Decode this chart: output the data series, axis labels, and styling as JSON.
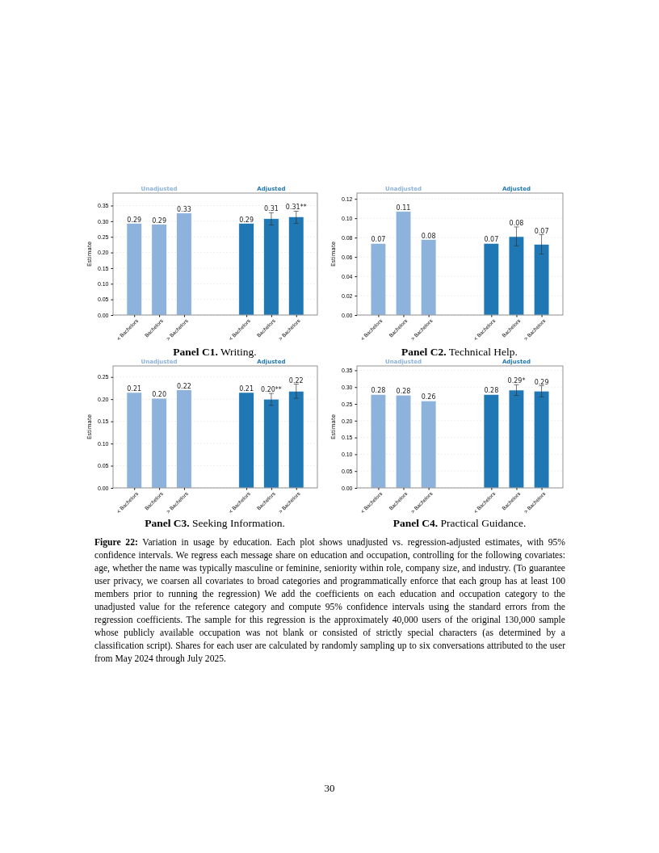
{
  "chart_data": [
    {
      "type": "bar",
      "title": "Panel C1. Writing.",
      "ylabel": "Estimate",
      "categories": [
        "< Bachelors",
        "Bachelors",
        "> Bachelors",
        "< Bachelors",
        "Bachelors",
        "> Bachelors"
      ],
      "ylim": [
        0,
        0.39
      ],
      "yticks": [
        {
          "value": 0,
          "label": "0.00"
        },
        {
          "value": 0.05,
          "label": "0.05"
        },
        {
          "value": 0.1,
          "label": "0.10"
        },
        {
          "value": 0.15,
          "label": "0.15"
        },
        {
          "value": 0.2,
          "label": "0.20"
        },
        {
          "value": 0.25,
          "label": "0.25"
        },
        {
          "value": 0.3,
          "label": "0.30"
        },
        {
          "value": 0.35,
          "label": "0.35"
        }
      ],
      "grid": "y",
      "series": [
        {
          "name": "Unadjusted",
          "color": "#8db3dc",
          "values": [
            0.293,
            0.29,
            0.326,
            null,
            null,
            null
          ],
          "value_labels": [
            "0.29",
            "0.29",
            "0.33",
            null,
            null,
            null
          ]
        },
        {
          "name": "Adjusted",
          "color": "#1f77b4",
          "values": [
            null,
            null,
            null,
            0.293,
            0.308,
            0.314
          ],
          "errors": [
            null,
            null,
            null,
            null,
            [
              0.288,
              0.327
            ],
            [
              0.293,
              0.332
            ]
          ],
          "value_labels": [
            null,
            null,
            null,
            "0.29",
            "0.31",
            "0.31**"
          ]
        }
      ]
    },
    {
      "type": "bar",
      "title": "Panel C2. Technical Help.",
      "ylabel": "Estimate",
      "categories": [
        "< Bachelors",
        "Bachelors",
        "> Bachelors",
        "< Bachelors",
        "Bachelors",
        "> Bachelors"
      ],
      "ylim": [
        0,
        0.126
      ],
      "yticks": [
        {
          "value": 0,
          "label": "0.00"
        },
        {
          "value": 0.02,
          "label": "0.02"
        },
        {
          "value": 0.04,
          "label": "0.04"
        },
        {
          "value": 0.06,
          "label": "0.06"
        },
        {
          "value": 0.08,
          "label": "0.08"
        },
        {
          "value": 0.1,
          "label": "0.10"
        },
        {
          "value": 0.12,
          "label": "0.12"
        }
      ],
      "grid": "y",
      "series": [
        {
          "name": "Unadjusted",
          "color": "#8db3dc",
          "values": [
            0.074,
            0.107,
            0.078,
            null,
            null,
            null
          ],
          "value_labels": [
            "0.07",
            "0.11",
            "0.08",
            null,
            null,
            null
          ]
        },
        {
          "name": "Adjusted",
          "color": "#1f77b4",
          "values": [
            null,
            null,
            null,
            0.074,
            0.081,
            0.073
          ],
          "errors": [
            null,
            null,
            null,
            null,
            [
              0.0715,
              0.091
            ],
            [
              0.063,
              0.083
            ]
          ],
          "value_labels": [
            null,
            null,
            null,
            "0.07",
            "0.08",
            "0.07"
          ]
        }
      ]
    },
    {
      "type": "bar",
      "title": "Panel C3. Seeking Information.",
      "ylabel": "Estimate",
      "categories": [
        "< Bachelors",
        "Bachelors",
        "> Bachelors",
        "< Bachelors",
        "Bachelors",
        "> Bachelors"
      ],
      "ylim": [
        0,
        0.275
      ],
      "yticks": [
        {
          "value": 0,
          "label": "0.00"
        },
        {
          "value": 0.05,
          "label": "0.05"
        },
        {
          "value": 0.1,
          "label": "0.10"
        },
        {
          "value": 0.15,
          "label": "0.15"
        },
        {
          "value": 0.2,
          "label": "0.20"
        },
        {
          "value": 0.25,
          "label": "0.25"
        }
      ],
      "grid": "y",
      "series": [
        {
          "name": "Unadjusted",
          "color": "#8db3dc",
          "values": [
            0.215,
            0.202,
            0.221,
            null,
            null,
            null
          ],
          "value_labels": [
            "0.21",
            "0.20",
            "0.22",
            null,
            null,
            null
          ]
        },
        {
          "name": "Adjusted",
          "color": "#1f77b4",
          "values": [
            null,
            null,
            null,
            0.215,
            0.2,
            0.218
          ],
          "errors": [
            null,
            null,
            null,
            null,
            [
              0.186,
              0.213
            ],
            [
              0.202,
              0.234
            ]
          ],
          "value_labels": [
            null,
            null,
            null,
            "0.21",
            "0.20**",
            "0.22"
          ]
        }
      ]
    },
    {
      "type": "bar",
      "title": "Panel C4. Practical Guidance.",
      "ylabel": "Estimate",
      "categories": [
        "< Bachelors",
        "Bachelors",
        "> Bachelors",
        "< Bachelors",
        "Bachelors",
        "> Bachelors"
      ],
      "ylim": [
        0,
        0.363
      ],
      "yticks": [
        {
          "value": 0,
          "label": "0.00"
        },
        {
          "value": 0.05,
          "label": "0.05"
        },
        {
          "value": 0.1,
          "label": "0.10"
        },
        {
          "value": 0.15,
          "label": "0.15"
        },
        {
          "value": 0.2,
          "label": "0.20"
        },
        {
          "value": 0.25,
          "label": "0.25"
        },
        {
          "value": 0.3,
          "label": "0.30"
        },
        {
          "value": 0.35,
          "label": "0.35"
        }
      ],
      "grid": "y",
      "series": [
        {
          "name": "Unadjusted",
          "color": "#8db3dc",
          "values": [
            0.278,
            0.276,
            0.259,
            null,
            null,
            null
          ],
          "value_labels": [
            "0.28",
            "0.28",
            "0.26",
            null,
            null,
            null
          ]
        },
        {
          "name": "Adjusted",
          "color": "#1f77b4",
          "values": [
            null,
            null,
            null,
            0.278,
            0.291,
            0.288
          ],
          "errors": [
            null,
            null,
            null,
            null,
            [
              0.275,
              0.307
            ],
            [
              0.271,
              0.304
            ]
          ],
          "value_labels": [
            null,
            null,
            null,
            "0.28",
            "0.29*",
            "0.29"
          ]
        }
      ],
      "annotations": [
        "Figure 22: Variation in usage by education. Each plot shows unadjusted vs. regression-adjusted estimates, with 95% confidence intervals. We regress each message share on education and occupation, controlling for the following covariates: age, whether the name was typically masculine or feminine, seniority within role, company size, and industry. (To guarantee user privacy, we coarsen all covariates to broad categories and programmatically enforce that each group has at least 100 members prior to running the regression) We add the coefficients on each education and occupation category to the unadjusted value for the reference category and compute 95% confidence intervals using the standard errors from the regression coefficients. The sample for this regression is the approximately 40,000 users of the original 130,000 sample whose publicly available occupation was not blank or consisted of strictly special characters (as determined by a classification script). Shares for each user are calculated by randomly sampling up to six conversations attributed to the user from May 2024 through July 2025.",
        "30"
      ]
    }
  ]
}
